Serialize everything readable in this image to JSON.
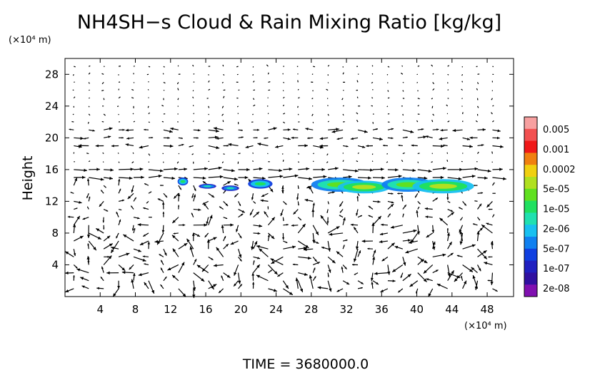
{
  "chart_data": {
    "type": "heatmap",
    "title": "NH4SH−s Cloud & Rain Mixing Ratio [kg/kg]",
    "xunit": "(×10⁴ m)",
    "yunit": "(×10⁴ m)",
    "ylabel": "Height",
    "footer": "TIME = 3680000.0",
    "xlim": [
      0,
      51
    ],
    "ylim": [
      0,
      30
    ],
    "xticks": [
      4,
      8,
      12,
      16,
      20,
      24,
      28,
      32,
      36,
      40,
      44,
      48
    ],
    "yticks": [
      4,
      8,
      12,
      16,
      20,
      24,
      28
    ],
    "grid": false,
    "legend_position": "right",
    "colorbar": {
      "labels": [
        "0.005",
        "0.001",
        "0.0002",
        "5e-05",
        "1e-05",
        "2e-06",
        "5e-07",
        "1e-07",
        "2e-08"
      ],
      "colors": [
        "#f7a0a0",
        "#f25050",
        "#f01818",
        "#f08010",
        "#f0d010",
        "#b0e020",
        "#60e020",
        "#20e060",
        "#20e0b0",
        "#18c0f0",
        "#1080f0",
        "#1040e0",
        "#2020c0",
        "#3010a0",
        "#8010b0"
      ]
    },
    "cloud_patches": [
      {
        "x": [
          12.8,
          14.0
        ],
        "y": [
          14.0,
          15.0
        ],
        "level": 6
      },
      {
        "x": [
          15.2,
          17.2
        ],
        "y": [
          13.6,
          14.2
        ],
        "level": 7
      },
      {
        "x": [
          17.8,
          19.8
        ],
        "y": [
          13.3,
          14.0
        ],
        "level": 7
      },
      {
        "x": [
          20.8,
          23.6
        ],
        "y": [
          13.6,
          14.8
        ],
        "level": 6
      },
      {
        "x": [
          28.0,
          34.5
        ],
        "y": [
          13.2,
          15.0
        ],
        "level": 5
      },
      {
        "x": [
          31.0,
          37.0
        ],
        "y": [
          13.0,
          14.6
        ],
        "level": 4
      },
      {
        "x": [
          36.0,
          42.0
        ],
        "y": [
          13.2,
          15.0
        ],
        "level": 5
      },
      {
        "x": [
          39.5,
          46.5
        ],
        "y": [
          13.0,
          14.8
        ],
        "level": 4
      }
    ]
  }
}
